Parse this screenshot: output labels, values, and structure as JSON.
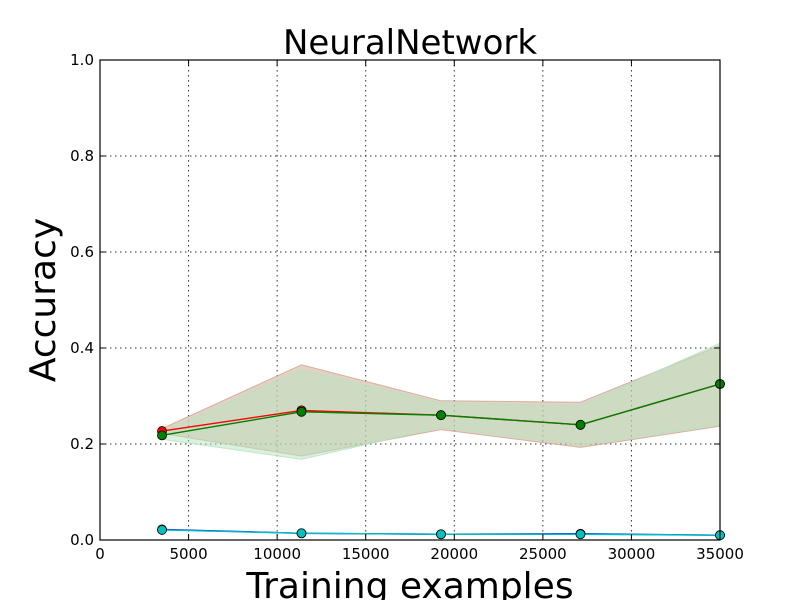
{
  "chart_data": {
    "type": "line",
    "title": "NeuralNetwork",
    "xlabel": "Training examples",
    "ylabel": "Accuracy",
    "xlim": [
      0,
      35000
    ],
    "ylim": [
      0.0,
      1.0
    ],
    "xticks": [
      0,
      5000,
      10000,
      15000,
      20000,
      25000,
      30000,
      35000
    ],
    "yticks": [
      0.0,
      0.2,
      0.4,
      0.6,
      0.8,
      1.0
    ],
    "xtick_labels": [
      "0",
      "5000",
      "10000",
      "15000",
      "20000",
      "25000",
      "30000",
      "35000"
    ],
    "ytick_labels": [
      "0.0",
      "0.2",
      "0.4",
      "0.6",
      "0.8",
      "1.0"
    ],
    "grid": true,
    "x": [
      3500,
      11375,
      19250,
      27125,
      35000
    ],
    "series": [
      {
        "color": "#ff0000",
        "values": [
          0.227,
          0.27,
          0.26,
          0.24,
          0.325
        ],
        "band_upper": [
          0.232,
          0.365,
          0.29,
          0.287,
          0.405
        ],
        "band_lower": [
          0.222,
          0.175,
          0.23,
          0.193,
          0.237
        ],
        "band_color": "#c8a68c"
      },
      {
        "color": "#008000",
        "values": [
          0.218,
          0.267,
          0.26,
          0.24,
          0.325
        ],
        "band_upper": [
          0.225,
          0.355,
          0.285,
          0.28,
          0.41
        ],
        "band_lower": [
          0.21,
          0.168,
          0.235,
          0.198,
          0.24
        ],
        "band_color": "#b5e3bf"
      },
      {
        "color": "#0000ff",
        "values": [
          0.022,
          0.014,
          0.012,
          0.013,
          0.01
        ]
      },
      {
        "color": "#00bfbf",
        "values": [
          0.021,
          0.014,
          0.012,
          0.012,
          0.01
        ]
      }
    ]
  }
}
